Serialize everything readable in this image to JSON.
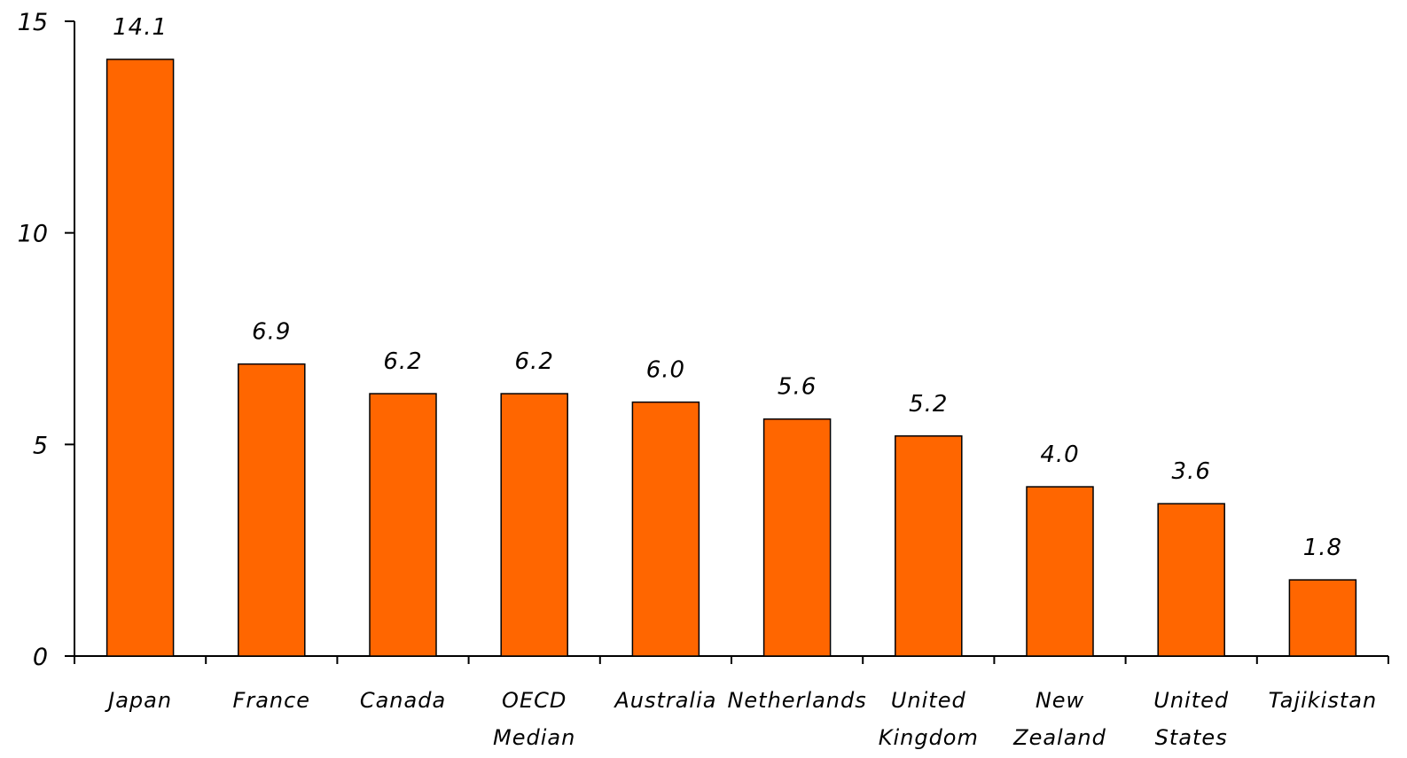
{
  "chart_data": {
    "type": "bar",
    "categories": [
      [
        "Japan"
      ],
      [
        "France"
      ],
      [
        "Canada"
      ],
      [
        "OECD",
        "Median"
      ],
      [
        "Australia"
      ],
      [
        "Netherlands"
      ],
      [
        "United",
        "Kingdom"
      ],
      [
        "New",
        "Zealand"
      ],
      [
        "United",
        "States"
      ],
      [
        "Tajikistan"
      ]
    ],
    "values": [
      14.1,
      6.9,
      6.2,
      6.2,
      6.0,
      5.6,
      5.2,
      4.0,
      3.6,
      1.8
    ],
    "data_labels": [
      "14.1",
      "6.9",
      "6.2",
      "6.2",
      "6.0",
      "5.6",
      "5.2",
      "4.0",
      "3.6",
      "1.8"
    ],
    "yticks": [
      "0",
      "5",
      "10",
      "15"
    ],
    "ylim": [
      0,
      15
    ],
    "grid": false,
    "legend": "none",
    "bar_color": "#ff6600",
    "bar_outline": "#000000",
    "axis_color": "#000000"
  }
}
